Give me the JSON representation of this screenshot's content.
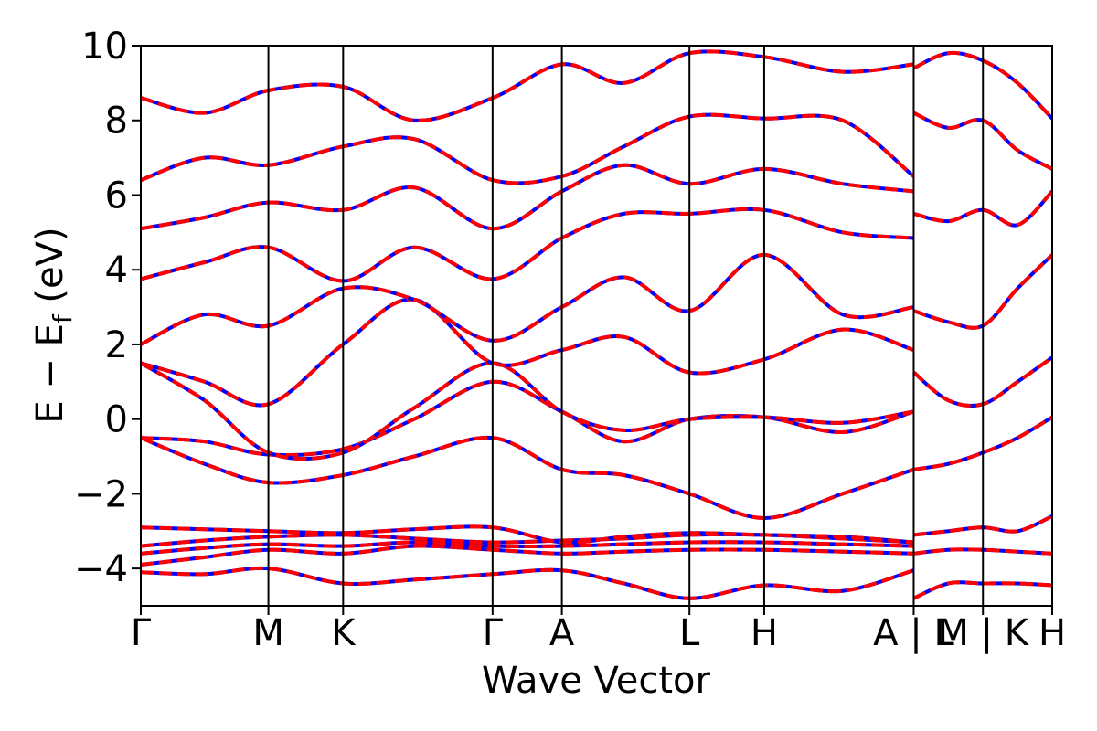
{
  "chart_data": {
    "type": "line",
    "xlabel": "Wave Vector",
    "ylabel_parts": {
      "main": "E − E",
      "sub": "f",
      "unit": " (eV)"
    },
    "ylim": [
      -5,
      10
    ],
    "yticks": [
      -4,
      -2,
      0,
      2,
      4,
      6,
      8,
      10
    ],
    "ytick_labels": [
      "−4",
      "−2",
      "0",
      "2",
      "4",
      "6",
      "8",
      "10"
    ],
    "high_symmetry_points": [
      {
        "label": "Γ",
        "x": 0.0
      },
      {
        "label": "M",
        "x": 0.14
      },
      {
        "label": "K",
        "x": 0.222
      },
      {
        "label": "Γ",
        "x": 0.386
      },
      {
        "label": "A",
        "x": 0.462
      },
      {
        "label": "L",
        "x": 0.602
      },
      {
        "label": "H",
        "x": 0.684
      },
      {
        "label": "A | L",
        "x": 0.848
      },
      {
        "label": "M | K",
        "x": 0.924
      },
      {
        "label": "H",
        "x": 1.0
      }
    ],
    "xlim": [
      0,
      1
    ],
    "series_styles": [
      {
        "color": "#0000ff",
        "style": "solid"
      },
      {
        "color": "#ff0000",
        "style": "dashed"
      }
    ],
    "bands": [
      {
        "x": [
          0,
          0.07,
          0.14,
          0.222,
          0.3,
          0.386,
          0.462,
          0.53,
          0.602,
          0.684,
          0.77,
          0.848
        ],
        "y": [
          -4.1,
          -4.15,
          -4.0,
          -4.4,
          -4.3,
          -4.15,
          -4.05,
          -4.4,
          -4.8,
          -4.45,
          -4.6,
          -4.05
        ]
      },
      {
        "x": [
          0,
          0.07,
          0.14,
          0.222,
          0.3,
          0.386,
          0.462,
          0.53,
          0.602,
          0.684,
          0.77,
          0.848
        ],
        "y": [
          -3.9,
          -3.7,
          -3.5,
          -3.6,
          -3.4,
          -3.5,
          -3.6,
          -3.55,
          -3.5,
          -3.5,
          -3.55,
          -3.6
        ]
      },
      {
        "x": [
          0,
          0.07,
          0.14,
          0.222,
          0.3,
          0.386,
          0.462,
          0.53,
          0.602,
          0.684,
          0.77,
          0.848
        ],
        "y": [
          -3.6,
          -3.45,
          -3.35,
          -3.4,
          -3.3,
          -3.4,
          -3.4,
          -3.35,
          -3.3,
          -3.3,
          -3.35,
          -3.4
        ]
      },
      {
        "x": [
          0,
          0.07,
          0.14,
          0.222,
          0.3,
          0.386,
          0.462,
          0.53,
          0.602,
          0.684,
          0.77,
          0.848
        ],
        "y": [
          -3.4,
          -3.25,
          -3.15,
          -3.1,
          -3.2,
          -3.3,
          -3.25,
          -3.2,
          -3.1,
          -3.1,
          -3.2,
          -3.3
        ]
      },
      {
        "x": [
          0,
          0.07,
          0.14,
          0.222,
          0.3,
          0.386,
          0.462,
          0.53,
          0.602,
          0.684,
          0.77,
          0.848
        ],
        "y": [
          -2.9,
          -2.95,
          -3.0,
          -3.05,
          -2.95,
          -2.9,
          -3.3,
          -3.15,
          -3.05,
          -3.1,
          -3.15,
          -3.3
        ]
      },
      {
        "x": [
          0,
          0.07,
          0.14,
          0.222,
          0.3,
          0.386,
          0.462,
          0.53,
          0.602,
          0.684,
          0.77,
          0.848
        ],
        "y": [
          -0.5,
          -1.2,
          -1.7,
          -1.5,
          -1.0,
          -0.5,
          -1.35,
          -1.5,
          -2.0,
          -2.65,
          -2.0,
          -1.35
        ]
      },
      {
        "x": [
          0,
          0.07,
          0.14,
          0.222,
          0.3,
          0.386,
          0.462,
          0.53,
          0.602,
          0.684,
          0.77,
          0.848
        ],
        "y": [
          -0.5,
          -0.6,
          -0.95,
          -0.8,
          0.0,
          1.0,
          0.2,
          -0.6,
          0.0,
          0.05,
          -0.35,
          0.2
        ]
      },
      {
        "x": [
          0,
          0.07,
          0.14,
          0.222,
          0.3,
          0.386,
          0.462,
          0.53,
          0.602,
          0.684,
          0.77,
          0.848
        ],
        "y": [
          1.5,
          0.5,
          -0.9,
          -0.9,
          0.3,
          1.5,
          0.2,
          -0.3,
          0.0,
          0.05,
          -0.1,
          0.2
        ]
      },
      {
        "x": [
          0,
          0.07,
          0.14,
          0.222,
          0.3,
          0.386,
          0.462,
          0.53,
          0.602,
          0.684,
          0.77,
          0.848
        ],
        "y": [
          1.5,
          1.0,
          0.4,
          2.0,
          3.2,
          1.5,
          1.85,
          2.2,
          1.25,
          1.6,
          2.4,
          1.85
        ]
      },
      {
        "x": [
          0,
          0.07,
          0.14,
          0.222,
          0.3,
          0.386,
          0.462,
          0.53,
          0.602,
          0.684,
          0.77,
          0.848
        ],
        "y": [
          2.0,
          2.8,
          2.5,
          3.5,
          3.2,
          2.1,
          3.0,
          3.8,
          2.9,
          4.4,
          2.8,
          3.0
        ]
      },
      {
        "x": [
          0,
          0.07,
          0.14,
          0.222,
          0.3,
          0.386,
          0.462,
          0.53,
          0.602,
          0.684,
          0.77,
          0.848
        ],
        "y": [
          3.75,
          4.2,
          4.6,
          3.7,
          4.6,
          3.75,
          4.85,
          5.5,
          5.5,
          5.6,
          5.0,
          4.85
        ]
      },
      {
        "x": [
          0,
          0.07,
          0.14,
          0.222,
          0.3,
          0.386,
          0.462,
          0.53,
          0.602,
          0.684,
          0.77,
          0.848
        ],
        "y": [
          5.1,
          5.4,
          5.8,
          5.6,
          6.2,
          5.1,
          6.1,
          6.8,
          6.3,
          6.7,
          6.3,
          6.1
        ]
      },
      {
        "x": [
          0,
          0.07,
          0.14,
          0.222,
          0.3,
          0.386,
          0.462,
          0.53,
          0.602,
          0.684,
          0.77,
          0.848
        ],
        "y": [
          6.4,
          7.0,
          6.8,
          7.3,
          7.5,
          6.4,
          6.5,
          7.3,
          8.1,
          8.05,
          8.0,
          6.5
        ]
      },
      {
        "x": [
          0,
          0.07,
          0.14,
          0.222,
          0.3,
          0.386,
          0.462,
          0.53,
          0.602,
          0.684,
          0.77,
          0.848
        ],
        "y": [
          8.6,
          8.2,
          8.8,
          8.9,
          8.0,
          8.6,
          9.5,
          9.0,
          9.8,
          9.7,
          9.3,
          9.5
        ]
      }
    ],
    "side_bands": [
      {
        "x": [
          0.848,
          0.886,
          0.924,
          0.962,
          1.0
        ],
        "y": [
          -4.8,
          -4.4,
          -4.4,
          -4.4,
          -4.45
        ]
      },
      {
        "x": [
          0.848,
          0.886,
          0.924,
          0.962,
          1.0
        ],
        "y": [
          -3.6,
          -3.5,
          -3.5,
          -3.55,
          -3.6
        ]
      },
      {
        "x": [
          0.848,
          0.886,
          0.924,
          0.962,
          1.0
        ],
        "y": [
          -3.1,
          -3.0,
          -2.9,
          -3.0,
          -2.6
        ]
      },
      {
        "x": [
          0.848,
          0.886,
          0.924,
          0.962,
          1.0
        ],
        "y": [
          -1.35,
          -1.2,
          -0.9,
          -0.5,
          0.05
        ]
      },
      {
        "x": [
          0.848,
          0.886,
          0.924,
          0.962,
          1.0
        ],
        "y": [
          1.25,
          0.5,
          0.4,
          1.0,
          1.65
        ]
      },
      {
        "x": [
          0.848,
          0.886,
          0.924,
          0.962,
          1.0
        ],
        "y": [
          2.9,
          2.6,
          2.5,
          3.5,
          4.4
        ]
      },
      {
        "x": [
          0.848,
          0.886,
          0.924,
          0.962,
          1.0
        ],
        "y": [
          5.5,
          5.3,
          5.6,
          5.2,
          6.1
        ]
      },
      {
        "x": [
          0.848,
          0.886,
          0.924,
          0.962,
          1.0
        ],
        "y": [
          8.2,
          7.8,
          8.0,
          7.2,
          6.7
        ]
      },
      {
        "x": [
          0.848,
          0.886,
          0.924,
          0.962,
          1.0
        ],
        "y": [
          9.4,
          9.8,
          9.6,
          9.0,
          8.05
        ]
      }
    ]
  }
}
